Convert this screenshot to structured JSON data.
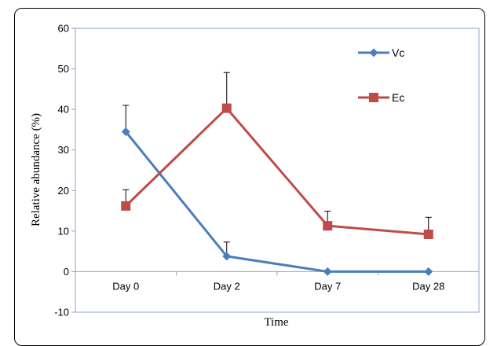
{
  "chart_data": {
    "type": "line",
    "title": "",
    "xlabel": "Time",
    "ylabel": "Relative abundance (%)",
    "categories": [
      "Day 0",
      "Day 2",
      "Day 7",
      "Day 28"
    ],
    "ylim": [
      -10,
      60
    ],
    "yticks": [
      -10,
      0,
      10,
      20,
      30,
      40,
      50,
      60
    ],
    "grid": false,
    "legend_position": "top-right",
    "series": [
      {
        "name": "Vc",
        "values": [
          34.5,
          3.8,
          0,
          0
        ],
        "error": [
          6.5,
          3.5,
          0,
          0
        ],
        "color": "#4A7EBB",
        "marker": "diamond"
      },
      {
        "name": "Ec",
        "values": [
          16.2,
          40.3,
          11.3,
          9.2
        ],
        "error": [
          4.0,
          8.8,
          3.6,
          4.2
        ],
        "color": "#BE4B48",
        "marker": "square"
      }
    ]
  }
}
